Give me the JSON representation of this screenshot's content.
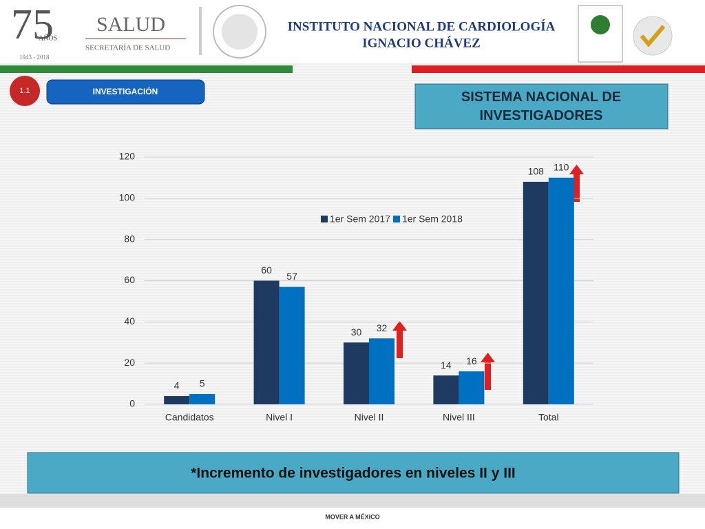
{
  "page": {
    "anniversary": "75",
    "anniversary_word": "AÑOS",
    "years": "1943 - 2018",
    "ministry": "SALUD",
    "ministry_sub": "SECRETARÍA DE SALUD",
    "institute": "INSTITUTO NACIONAL DE CARDIOLOGÍA",
    "institute_name": "IGNACIO CHÁVEZ",
    "section_number": "1.1",
    "section": "INVESTIGACIÓN",
    "heading": "SISTEMA NACIONAL DE INVESTIGADORES",
    "note": "*Incremento de investigadores en niveles  II y III",
    "footer": "MOVER A MÉXICO"
  },
  "chart_data": {
    "type": "bar",
    "categories": [
      "Candidatos",
      "Nivel I",
      "Nivel II",
      "Nivel III",
      "Total"
    ],
    "series": [
      {
        "name": "1er Sem 2017",
        "color": "#1f3a60",
        "values": [
          4,
          60,
          30,
          14,
          108
        ]
      },
      {
        "name": "1er Sem 2018",
        "color": "#0070c0",
        "values": [
          5,
          57,
          32,
          16,
          110
        ]
      }
    ],
    "ylim": [
      0,
      120
    ],
    "yticks": [
      0,
      20,
      40,
      60,
      80,
      100,
      120
    ],
    "grid": true,
    "legend": "upper right"
  }
}
